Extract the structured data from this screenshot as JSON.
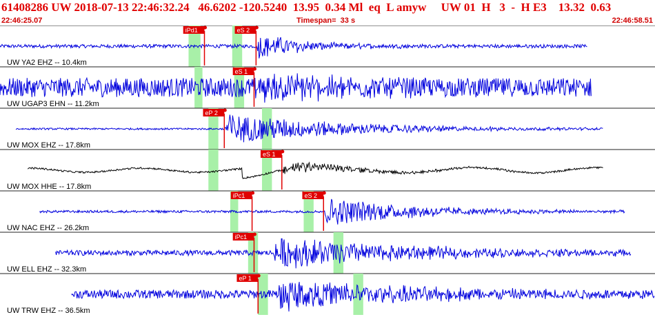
{
  "header": {
    "title": "61408286 UW 2018-07-13 22:46:32.24   46.6202 -120.5240  13.95  0.34 Ml  eq  L amyw     UW 01  H   3  -  H E3    13.32  0.63",
    "start_time": "22:46:25.07",
    "end_time": "22:46:58.51",
    "timespan": "Timespan=  33 s"
  },
  "colors": {
    "title": "#e00000",
    "trace": "#0000dd",
    "trace_alt": "#000000",
    "pick": "#e00000",
    "window": "#a8f0a8",
    "separator": "#202020"
  },
  "chart_data": {
    "type": "line",
    "title": "",
    "xlabel": "",
    "ylabel": "",
    "x_range_s": [
      0,
      33
    ],
    "panels": [
      {
        "label": "UW YA2 EHZ -- 10.4km",
        "color": "blue",
        "trace_start_s": 0.0,
        "trace_end_s": 29.6,
        "noise": 0.1,
        "signal_onset_s": 12.9,
        "signal_peak": 0.75,
        "signal_decay_s": 2.5,
        "period_s": 0.12,
        "picks": [
          {
            "label": "iPd1",
            "time_s": 10.3
          },
          {
            "label": "eS 2",
            "time_s": 12.9
          }
        ],
        "windows": [
          [
            9.5,
            10.1
          ],
          [
            11.7,
            12.2
          ]
        ]
      },
      {
        "label": "UW UGAP3 EHN -- 11.2km",
        "color": "blue",
        "trace_start_s": 0.0,
        "trace_end_s": 29.8,
        "noise": 0.55,
        "signal_onset_s": 12.8,
        "signal_peak": 0.7,
        "signal_decay_s": 4.0,
        "period_s": 0.16,
        "picks": [
          {
            "label": "eS 1",
            "time_s": 12.8
          }
        ],
        "windows": [
          [
            9.8,
            10.2
          ],
          [
            11.8,
            12.3
          ]
        ]
      },
      {
        "label": "UW MOX EHZ -- 17.8km",
        "color": "blue",
        "trace_start_s": 0.8,
        "trace_end_s": 30.4,
        "noise": 0.05,
        "signal_onset_s": 11.3,
        "signal_peak": 0.9,
        "signal_decay_s": 6.0,
        "period_s": 0.12,
        "picks": [
          {
            "label": "eP 2",
            "time_s": 11.3
          }
        ],
        "windows": [
          [
            10.5,
            11.0
          ],
          [
            13.2,
            13.7
          ]
        ]
      },
      {
        "label": "UW MOX HHE -- 17.8km",
        "color": "black",
        "trace_start_s": 1.4,
        "trace_end_s": 30.4,
        "noise": 0.06,
        "signal_onset_s": 14.2,
        "signal_peak": 0.35,
        "signal_decay_s": 4.0,
        "period_s": 0.25,
        "picks": [
          {
            "label": "eS 1",
            "time_s": 14.2
          }
        ],
        "windows": [
          [
            10.5,
            11.0
          ],
          [
            13.2,
            13.7
          ]
        ]
      },
      {
        "label": "UW NAC EHZ -- 26.2km",
        "color": "blue",
        "trace_start_s": 2.0,
        "trace_end_s": 31.5,
        "noise": 0.07,
        "signal_onset_s": 16.3,
        "signal_peak": 0.85,
        "signal_decay_s": 4.5,
        "period_s": 0.12,
        "picks": [
          {
            "label": "iPc1",
            "time_s": 12.7
          },
          {
            "label": "eS 2",
            "time_s": 16.3
          }
        ],
        "windows": [
          [
            11.6,
            12.0
          ],
          [
            15.3,
            15.8
          ]
        ]
      },
      {
        "label": "UW ELL EHZ -- 32.3km",
        "color": "blue",
        "trace_start_s": 2.8,
        "trace_end_s": 31.8,
        "noise": 0.15,
        "signal_onset_s": 13.8,
        "signal_peak": 0.9,
        "signal_decay_s": 7.0,
        "period_s": 0.11,
        "picks": [
          {
            "label": "iPc1",
            "time_s": 12.8
          }
        ],
        "windows": [
          [
            12.5,
            13.0
          ],
          [
            16.8,
            17.3
          ]
        ]
      },
      {
        "label": "UW TRW EHZ -- 36.5km",
        "color": "blue",
        "trace_start_s": 3.6,
        "trace_end_s": 33.0,
        "noise": 0.25,
        "signal_onset_s": 14.0,
        "signal_peak": 0.85,
        "signal_decay_s": 7.0,
        "period_s": 0.11,
        "picks": [
          {
            "label": "eP 1",
            "time_s": 13.0
          }
        ],
        "windows": [
          [
            13.0,
            13.5
          ],
          [
            17.8,
            18.3
          ]
        ]
      }
    ]
  }
}
